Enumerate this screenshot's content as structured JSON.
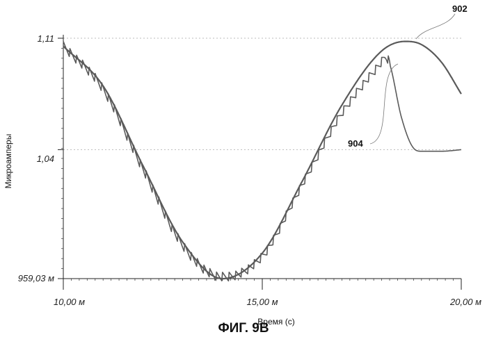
{
  "chart_data": {
    "type": "line",
    "title": "",
    "xlabel": "Время (с)",
    "ylabel": "Микроамперы",
    "xlim": [
      10.0,
      20.0
    ],
    "ylim": [
      0.95903,
      1.11
    ],
    "x_ticks": [
      {
        "value": 10.0,
        "label": "10,00 м"
      },
      {
        "value": 15.0,
        "label": "15,00 м"
      },
      {
        "value": 20.0,
        "label": "20,00 м"
      }
    ],
    "y_ticks": [
      {
        "value": 0.95903,
        "label": "959,03 м"
      },
      {
        "value": 1.04,
        "label": "1,04"
      },
      {
        "value": 1.11,
        "label": "1,11"
      }
    ],
    "series": [
      {
        "name": "902",
        "x": [
          10.0,
          11.0,
          12.0,
          13.0,
          14.0,
          15.0,
          16.0,
          17.0,
          18.0,
          18.6,
          19.0,
          19.5,
          20.0
        ],
        "values": [
          1.105,
          1.08,
          1.03,
          0.982,
          0.959,
          0.975,
          1.02,
          1.068,
          1.102,
          1.108,
          1.106,
          1.095,
          1.075
        ]
      },
      {
        "name": "904",
        "x": [
          10.0,
          11.0,
          12.0,
          13.0,
          14.0,
          15.0,
          16.0,
          17.0,
          18.0,
          18.1,
          18.2,
          18.5,
          18.8,
          19.0,
          19.5,
          20.0
        ],
        "values": [
          1.105,
          1.078,
          1.028,
          0.98,
          0.96,
          0.973,
          1.018,
          1.063,
          1.095,
          1.098,
          1.094,
          1.06,
          1.041,
          1.039,
          1.039,
          1.04
        ],
        "sawtooth": {
          "amplitude": 0.006,
          "period": 0.16,
          "x_start": 10.0,
          "x_end": 18.2
        }
      }
    ],
    "annotations": [
      {
        "label": "902",
        "target_series": "902"
      },
      {
        "label": "904",
        "target_series": "904"
      }
    ],
    "figure_caption": "ФИГ. 9В"
  },
  "colors": {
    "line": "#5a5a5a",
    "axis": "#222222",
    "grid_dots": "#bbbbbb"
  }
}
